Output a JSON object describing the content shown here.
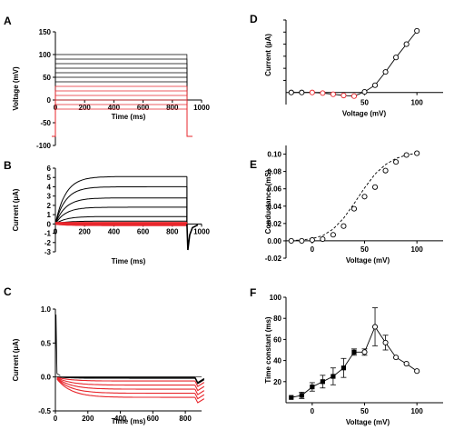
{
  "chart_data": [
    {
      "id": "A",
      "type": "line",
      "panel_label": "A",
      "xlabel": "Time (ms)",
      "ylabel": "Voltage (mV)",
      "xlim": [
        0,
        1000
      ],
      "ylim": [
        -100,
        150
      ],
      "xticks": [
        0,
        200,
        400,
        600,
        800,
        1000
      ],
      "yticks": [
        -100,
        -50,
        0,
        50,
        100,
        150
      ],
      "holding_potential": -80,
      "step_start": 0,
      "step_end": 900,
      "step_levels_black": [
        100,
        90,
        80,
        70,
        60,
        50,
        40
      ],
      "step_levels_red": [
        30,
        20,
        10,
        0,
        -10,
        -20
      ],
      "colors": {
        "black": "#000000",
        "red": "#e8262c"
      }
    },
    {
      "id": "B",
      "type": "line",
      "panel_label": "B",
      "xlabel": "Time (ms)",
      "ylabel": "Current (µA)",
      "xlim": [
        0,
        1000
      ],
      "ylim": [
        -3,
        6
      ],
      "xticks": [
        0,
        200,
        400,
        600,
        800,
        1000
      ],
      "yticks": [
        -3,
        -2,
        -1,
        0,
        1,
        2,
        3,
        4,
        5,
        6
      ],
      "series_black_steady_state": [
        5.1,
        4.0,
        2.8,
        1.8,
        0.8,
        0.3
      ],
      "series_red_steady_state": [
        0.1,
        0.05,
        0,
        -0.05,
        -0.1,
        -0.15
      ],
      "tail_minimum": -2.8
    },
    {
      "id": "C",
      "type": "line",
      "panel_label": "C",
      "xlabel": "Time (ms)",
      "ylabel": "Current (µA)",
      "xlim": [
        0,
        900
      ],
      "ylim": [
        -0.5,
        1.0
      ],
      "xticks": [
        0,
        200,
        400,
        600,
        800
      ],
      "yticks": [
        -0.5,
        0.0,
        0.5,
        1.0
      ],
      "series_black_steady_state": [
        0.0,
        -0.01,
        -0.02
      ],
      "series_red_steady_state": [
        -0.06,
        -0.12,
        -0.18,
        -0.24,
        -0.3
      ]
    },
    {
      "id": "D",
      "type": "scatter",
      "panel_label": "D",
      "xlabel": "Voltage (mV)",
      "ylabel": "Current (µA)",
      "xlim": [
        -25,
        125
      ],
      "ylim": [
        -1,
        6
      ],
      "xticks": [
        50,
        100
      ],
      "yticks": [],
      "x": [
        -20,
        -10,
        0,
        10,
        20,
        30,
        40,
        50,
        60,
        70,
        80,
        90,
        100
      ],
      "y": [
        0,
        0,
        0,
        -0.05,
        -0.15,
        -0.25,
        -0.3,
        0.05,
        0.6,
        1.7,
        2.9,
        4.0,
        5.1
      ],
      "red_points": [
        2,
        3,
        4,
        5,
        6
      ]
    },
    {
      "id": "E",
      "type": "scatter",
      "panel_label": "E",
      "xlabel": "Voltage (mV)",
      "ylabel": "Conductance (mS)",
      "xlim": [
        -25,
        125
      ],
      "ylim": [
        -0.02,
        0.11
      ],
      "xticks": [
        0,
        50,
        100
      ],
      "yticks": [
        -0.02,
        0.0,
        0.02,
        0.04,
        0.06,
        0.08,
        0.1
      ],
      "x": [
        -20,
        -10,
        0,
        10,
        20,
        30,
        40,
        50,
        60,
        70,
        80,
        90,
        100
      ],
      "y": [
        0.0,
        0.0,
        0.001,
        0.002,
        0.007,
        0.017,
        0.037,
        0.051,
        0.062,
        0.081,
        0.091,
        0.099,
        0.101
      ],
      "fit_x": [
        -20,
        -10,
        0,
        10,
        20,
        30,
        40,
        50,
        60,
        70,
        80,
        90,
        100
      ],
      "fit_y": [
        0.0003,
        0.001,
        0.0025,
        0.006,
        0.0135,
        0.026,
        0.043,
        0.061,
        0.077,
        0.088,
        0.095,
        0.099,
        0.101
      ]
    },
    {
      "id": "F",
      "type": "scatter",
      "panel_label": "F",
      "xlabel": "Voltage (mV)",
      "ylabel": "Time constant (ms)",
      "xlim": [
        -25,
        125
      ],
      "ylim": [
        0,
        100
      ],
      "xticks": [
        0,
        50,
        100
      ],
      "yticks": [
        20,
        40,
        60,
        80,
        100
      ],
      "x": [
        -20,
        -10,
        0,
        10,
        20,
        30,
        40,
        50,
        60,
        70,
        80,
        90,
        100
      ],
      "y": [
        5,
        7,
        15,
        20,
        25,
        33,
        48,
        48,
        72,
        57,
        43,
        37,
        30
      ],
      "err": [
        0,
        3,
        4,
        6,
        8,
        9,
        3,
        3,
        18,
        7,
        0,
        0,
        0
      ],
      "filled": [
        true,
        true,
        true,
        true,
        true,
        true,
        true,
        false,
        false,
        false,
        false,
        false,
        false
      ]
    }
  ]
}
